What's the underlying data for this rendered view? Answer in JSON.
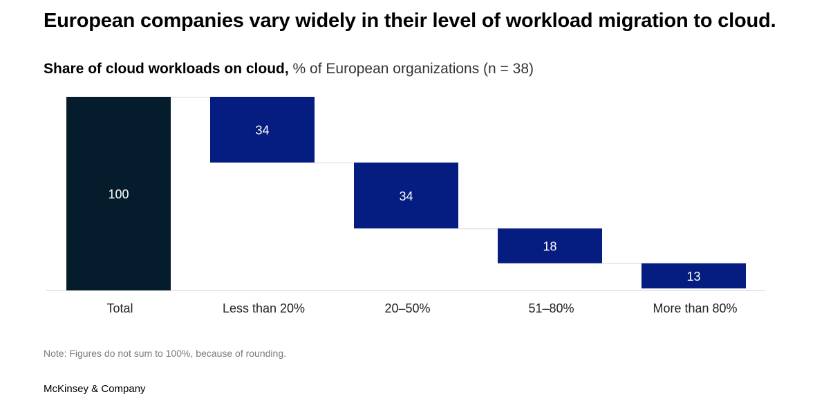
{
  "title": "European companies vary widely in their level of workload migration to cloud.",
  "subtitle_bold": "Share of cloud workloads on cloud,",
  "subtitle_rest": " % of European organizations (n = 38)",
  "note": "Note: Figures do not sum to 100%, because of rounding.",
  "source": "McKinsey & Company",
  "colors": {
    "total": "#051c2c",
    "segment": "#051c80",
    "label_on_bar": "#ffffff",
    "axis": "#d9d9d9",
    "connector": "#d9d9d9"
  },
  "chart_data": {
    "type": "bar",
    "subtype": "waterfall",
    "categories": [
      "Total",
      "Less than 20%",
      "20–50%",
      "51–80%",
      "More than 80%"
    ],
    "values": [
      100,
      34,
      34,
      18,
      13
    ],
    "ylim": [
      0,
      100
    ],
    "grid": false,
    "legend": "none"
  }
}
